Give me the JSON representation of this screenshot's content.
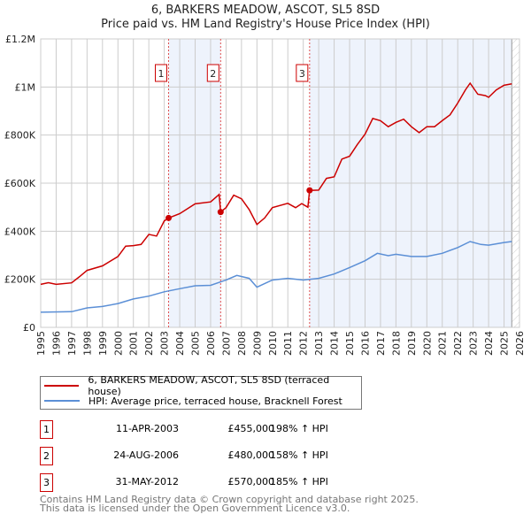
{
  "chart_data": {
    "type": "line",
    "title": "6, BARKERS MEADOW, ASCOT, SL5 8SD",
    "subtitle": "Price paid vs. HM Land Registry's House Price Index (HPI)",
    "xlim": [
      1995,
      2026
    ],
    "ylim": [
      0,
      1200000
    ],
    "yticks": [
      {
        "v": 0,
        "label": "£0"
      },
      {
        "v": 200000,
        "label": "£200K"
      },
      {
        "v": 400000,
        "label": "£400K"
      },
      {
        "v": 600000,
        "label": "£600K"
      },
      {
        "v": 800000,
        "label": "£800K"
      },
      {
        "v": 1000000,
        "label": "£1M"
      },
      {
        "v": 1200000,
        "label": "£1.2M"
      }
    ],
    "xticks": [
      "1995",
      "1996",
      "1997",
      "1998",
      "1999",
      "2000",
      "2001",
      "2002",
      "2003",
      "2004",
      "2005",
      "2006",
      "2007",
      "2008",
      "2009",
      "2010",
      "2011",
      "2012",
      "2013",
      "2014",
      "2015",
      "2016",
      "2017",
      "2018",
      "2019",
      "2020",
      "2021",
      "2022",
      "2023",
      "2024",
      "2025",
      "2026"
    ],
    "grid": true,
    "shaded_ranges": [
      [
        2003.28,
        2006.65
      ],
      [
        2012.41,
        2025.5
      ]
    ],
    "hatched_from": 2025.5,
    "series": [
      {
        "name": "6, BARKERS MEADOW, ASCOT, SL5 8SD (terraced house)",
        "color": "#cc0000",
        "points": [
          [
            1995,
            179000
          ],
          [
            1995.5,
            186000
          ],
          [
            1996,
            179000
          ],
          [
            1997,
            185000
          ],
          [
            1997.5,
            210000
          ],
          [
            1998,
            237000
          ],
          [
            1999,
            256000
          ],
          [
            2000,
            295000
          ],
          [
            2000.5,
            338000
          ],
          [
            2001,
            340000
          ],
          [
            2001.5,
            345000
          ],
          [
            2002,
            387000
          ],
          [
            2002.5,
            380000
          ],
          [
            2003,
            443000
          ],
          [
            2003.28,
            455000
          ],
          [
            2004,
            473000
          ],
          [
            2005,
            514000
          ],
          [
            2006,
            522000
          ],
          [
            2006.55,
            553000
          ],
          [
            2006.65,
            480000
          ],
          [
            2007,
            498000
          ],
          [
            2007.5,
            550000
          ],
          [
            2008,
            535000
          ],
          [
            2008.5,
            490000
          ],
          [
            2009,
            428000
          ],
          [
            2009.5,
            455000
          ],
          [
            2010,
            498000
          ],
          [
            2011,
            516000
          ],
          [
            2011.5,
            498000
          ],
          [
            2011.9,
            515000
          ],
          [
            2012.3,
            500000
          ],
          [
            2012.41,
            570000
          ],
          [
            2013,
            571000
          ],
          [
            2013.5,
            620000
          ],
          [
            2014,
            626000
          ],
          [
            2014.5,
            700000
          ],
          [
            2015,
            712000
          ],
          [
            2015.5,
            761000
          ],
          [
            2016,
            804000
          ],
          [
            2016.5,
            869000
          ],
          [
            2017,
            860000
          ],
          [
            2017.5,
            835000
          ],
          [
            2018,
            853000
          ],
          [
            2018.5,
            866000
          ],
          [
            2019,
            835000
          ],
          [
            2019.5,
            810000
          ],
          [
            2020,
            835000
          ],
          [
            2020.5,
            835000
          ],
          [
            2021,
            860000
          ],
          [
            2021.5,
            884000
          ],
          [
            2022,
            933000
          ],
          [
            2022.5,
            988000
          ],
          [
            2022.8,
            1016000
          ],
          [
            2023.3,
            970000
          ],
          [
            2023.8,
            964000
          ],
          [
            2024,
            957000
          ],
          [
            2024.5,
            988000
          ],
          [
            2025,
            1007000
          ],
          [
            2025.5,
            1013000
          ]
        ]
      },
      {
        "name": "HPI: Average price, terraced house, Bracknell Forest",
        "color": "#5b8fd6",
        "points": [
          [
            1995,
            63000
          ],
          [
            1997,
            65000
          ],
          [
            1998,
            81000
          ],
          [
            1999,
            87000
          ],
          [
            2000,
            99000
          ],
          [
            2001,
            118000
          ],
          [
            2002,
            130000
          ],
          [
            2003,
            148000
          ],
          [
            2004,
            161000
          ],
          [
            2005,
            173000
          ],
          [
            2006,
            175000
          ],
          [
            2007,
            197000
          ],
          [
            2007.7,
            216000
          ],
          [
            2008.5,
            204000
          ],
          [
            2009,
            167000
          ],
          [
            2010,
            197000
          ],
          [
            2011,
            204000
          ],
          [
            2012,
            197000
          ],
          [
            2013,
            204000
          ],
          [
            2014,
            222000
          ],
          [
            2015,
            249000
          ],
          [
            2016,
            277000
          ],
          [
            2016.8,
            308000
          ],
          [
            2017.5,
            298000
          ],
          [
            2018,
            304000
          ],
          [
            2019,
            295000
          ],
          [
            2020,
            295000
          ],
          [
            2021,
            308000
          ],
          [
            2022,
            332000
          ],
          [
            2022.8,
            357000
          ],
          [
            2023.5,
            345000
          ],
          [
            2024,
            342000
          ],
          [
            2025,
            353000
          ],
          [
            2025.5,
            357000
          ]
        ]
      }
    ],
    "sales": [
      {
        "id": "1",
        "x": 2003.28,
        "price": 455000,
        "date": "11-APR-2003",
        "price_label": "£455,000",
        "hpi": "198% ↑ HPI"
      },
      {
        "id": "2",
        "x": 2006.65,
        "price": 480000,
        "date": "24-AUG-2006",
        "price_label": "£480,000",
        "hpi": "158% ↑ HPI"
      },
      {
        "id": "3",
        "x": 2012.41,
        "price": 570000,
        "date": "31-MAY-2012",
        "price_label": "£570,000",
        "hpi": "185% ↑ HPI"
      }
    ]
  },
  "legend": {
    "red": "6, BARKERS MEADOW, ASCOT, SL5 8SD (terraced house)",
    "blue": "HPI: Average price, terraced house, Bracknell Forest"
  },
  "footer": {
    "line1": "Contains HM Land Registry data © Crown copyright and database right 2025.",
    "line2": "This data is licensed under the Open Government Licence v3.0."
  }
}
